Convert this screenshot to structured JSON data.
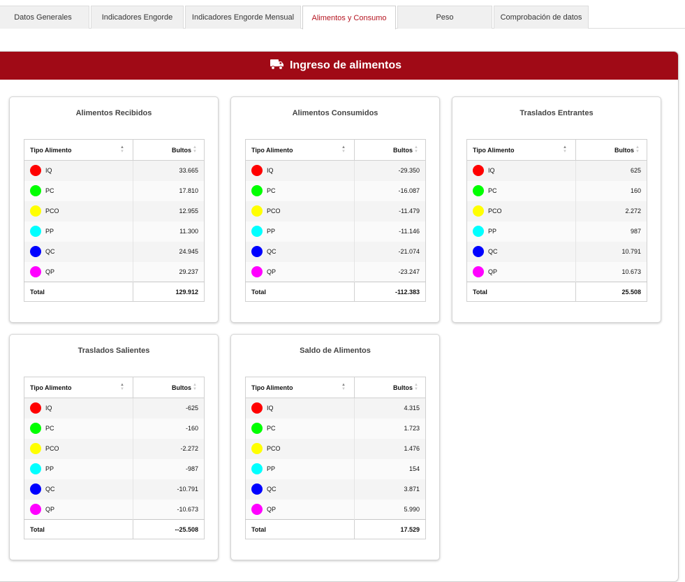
{
  "tabs": [
    {
      "label": "Datos Generales",
      "active": false
    },
    {
      "label": "Indicadores Engorde",
      "active": false
    },
    {
      "label": "Indicadores Engorde Mensual",
      "active": false
    },
    {
      "label": "Alimentos y Consumo",
      "active": true
    },
    {
      "label": "Peso",
      "active": false
    },
    {
      "label": "Comprobación de datos",
      "active": false
    }
  ],
  "panel": {
    "title": "Ingreso de alimentos",
    "icon": "truck-icon"
  },
  "columns": {
    "type": "Tipo Alimento",
    "bags": "Bultos"
  },
  "total_label": "Total",
  "food_colors": {
    "IQ": "#ff0000",
    "PC": "#00ff00",
    "PCO": "#ffff00",
    "PP": "#00ffff",
    "QC": "#0000ff",
    "QP": "#ff00ff"
  },
  "cards": [
    {
      "title": "Alimentos Recibidos",
      "rows": [
        {
          "type": "IQ",
          "value": "33.665"
        },
        {
          "type": "PC",
          "value": "17.810"
        },
        {
          "type": "PCO",
          "value": "12.955"
        },
        {
          "type": "PP",
          "value": "11.300"
        },
        {
          "type": "QC",
          "value": "24.945"
        },
        {
          "type": "QP",
          "value": "29.237"
        }
      ],
      "total": "129.912"
    },
    {
      "title": "Alimentos Consumidos",
      "rows": [
        {
          "type": "IQ",
          "value": "-29.350"
        },
        {
          "type": "PC",
          "value": "-16.087"
        },
        {
          "type": "PCO",
          "value": "-11.479"
        },
        {
          "type": "PP",
          "value": "-11.146"
        },
        {
          "type": "QC",
          "value": "-21.074"
        },
        {
          "type": "QP",
          "value": "-23.247"
        }
      ],
      "total": "-112.383"
    },
    {
      "title": "Traslados Entrantes",
      "rows": [
        {
          "type": "IQ",
          "value": "625"
        },
        {
          "type": "PC",
          "value": "160"
        },
        {
          "type": "PCO",
          "value": "2.272"
        },
        {
          "type": "PP",
          "value": "987"
        },
        {
          "type": "QC",
          "value": "10.791"
        },
        {
          "type": "QP",
          "value": "10.673"
        }
      ],
      "total": "25.508"
    },
    {
      "title": "Traslados Salientes",
      "rows": [
        {
          "type": "IQ",
          "value": "-625"
        },
        {
          "type": "PC",
          "value": "-160"
        },
        {
          "type": "PCO",
          "value": "-2.272"
        },
        {
          "type": "PP",
          "value": "-987"
        },
        {
          "type": "QC",
          "value": "-10.791"
        },
        {
          "type": "QP",
          "value": "-10.673"
        }
      ],
      "total": "--25.508"
    },
    {
      "title": "Saldo de Alimentos",
      "rows": [
        {
          "type": "IQ",
          "value": "4.315"
        },
        {
          "type": "PC",
          "value": "1.723"
        },
        {
          "type": "PCO",
          "value": "1.476"
        },
        {
          "type": "PP",
          "value": "154"
        },
        {
          "type": "QC",
          "value": "3.871"
        },
        {
          "type": "QP",
          "value": "5.990"
        }
      ],
      "total": "17.529"
    }
  ]
}
